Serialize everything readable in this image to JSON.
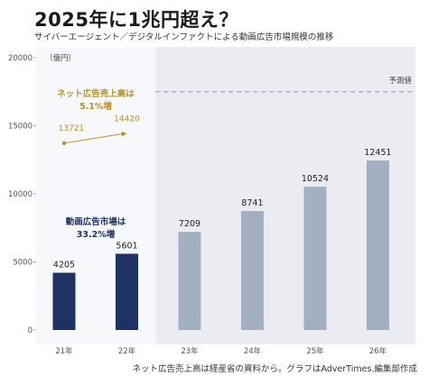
{
  "header": {
    "title": "2025年に1兆円超え？",
    "subtitle": "サイバーエージェント／デジタルインファクトによる動画広告市場規模の推移"
  },
  "footer": {
    "source": "ネット広告売上高は経産省の資料から。グラフはAdverTimes.編集部作成"
  },
  "chart_data": {
    "type": "bar",
    "categories": [
      "21年",
      "22年",
      "23年",
      "24年",
      "25年",
      "26年"
    ],
    "values": [
      4205,
      5601,
      7209,
      8741,
      10524,
      12451
    ],
    "actual_count": 2,
    "forecast_count": 4,
    "ylim": [
      0,
      20000
    ],
    "yticks": [
      0,
      5000,
      10000,
      15000,
      20000
    ],
    "unit_label": "（億円）",
    "forecast_label": "予測値",
    "forecast_line_value": 17500,
    "grid": false,
    "colors": {
      "actual": "#1e3264",
      "forecast": "#a3b0c2",
      "forecast_bg": "#eaecf1",
      "annotation_net": "#b8912a",
      "annotation_video": "#1e3264",
      "axis_text": "#555555"
    },
    "annotations": {
      "net_ad": {
        "title": "ネット広告売上高は",
        "subtitle": "5.1%増",
        "from_value": 13721,
        "to_value": 14420,
        "from_label": "13721",
        "to_label": "14420"
      },
      "video_ad": {
        "title": "動画広告市場は",
        "subtitle": "33.2%増"
      }
    }
  }
}
